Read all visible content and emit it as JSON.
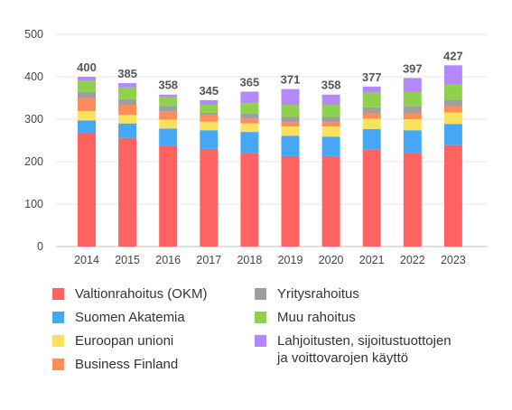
{
  "chart_data": {
    "type": "bar",
    "stacked": true,
    "title": "",
    "xlabel": "",
    "ylabel": "",
    "ylim": [
      0,
      500
    ],
    "yticks": [
      0,
      100,
      200,
      300,
      400,
      500
    ],
    "grid": true,
    "legend_position": "bottom",
    "categories": [
      "2014",
      "2015",
      "2016",
      "2017",
      "2018",
      "2019",
      "2020",
      "2021",
      "2022",
      "2023"
    ],
    "totals": [
      400,
      385,
      358,
      345,
      365,
      371,
      358,
      377,
      397,
      427
    ],
    "series": [
      {
        "name": "Valtionrahoitus (OKM)",
        "color": "#ff6361",
        "values": [
          266,
          256,
          238,
          230,
          220,
          213,
          213,
          228,
          221,
          239
        ]
      },
      {
        "name": "Suomen Akatemia",
        "color": "#46a8f5",
        "values": [
          31,
          34,
          40,
          44,
          50,
          48,
          46,
          49,
          53,
          50
        ]
      },
      {
        "name": "Euroopan unioni",
        "color": "#fbe25c",
        "values": [
          22,
          20,
          21,
          20,
          20,
          22,
          24,
          24,
          26,
          27
        ]
      },
      {
        "name": "Business Finland",
        "color": "#ff8c5a",
        "values": [
          31,
          24,
          20,
          15,
          12,
          10,
          10,
          13,
          14,
          15
        ]
      },
      {
        "name": "Yritysrahoitus",
        "color": "#9e9e9e",
        "values": [
          14,
          13,
          12,
          6,
          11,
          13,
          13,
          14,
          16,
          15
        ]
      },
      {
        "name": "Muu rahoitus",
        "color": "#8fd14f",
        "values": [
          26,
          28,
          21,
          20,
          25,
          28,
          29,
          35,
          34,
          36
        ]
      },
      {
        "name": "Lahjoitusten, sijoitustuottojen\nja voittovarojen käyttö",
        "color": "#b388fa",
        "values": [
          10,
          10,
          6,
          10,
          27,
          37,
          23,
          14,
          33,
          45
        ]
      }
    ]
  }
}
